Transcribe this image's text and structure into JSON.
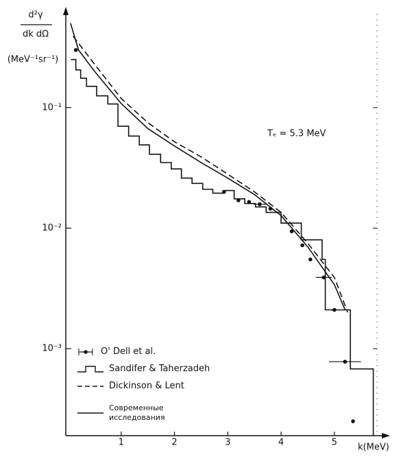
{
  "chart_data": {
    "type": "line",
    "yscale": "log",
    "y_label": {
      "numerator": "d²γ",
      "denominator": "dk dΩ",
      "units": "(MeV⁻¹sr⁻¹)"
    },
    "x_label": "k(MeV)",
    "annotation": "Tₑ = 5.3 MeV",
    "xlim": [
      0,
      5.8
    ],
    "xticks": [
      1,
      2,
      3,
      4,
      5
    ],
    "ylim": [
      0.00019,
      0.6
    ],
    "yticks": [
      {
        "value": 0.1,
        "label": "10⁻¹"
      },
      {
        "value": 0.01,
        "label": "10⁻²"
      },
      {
        "value": 0.001,
        "label": "10⁻³"
      }
    ],
    "legend": "lower left",
    "series": [
      {
        "name": "O' Dell et al.",
        "type": "scatter",
        "color": "#111",
        "x": [
          0.15,
          2.93,
          3.2,
          3.4,
          3.6,
          3.8,
          4.2,
          4.4,
          4.55,
          4.8,
          5.0,
          5.2,
          5.35
        ],
        "values": [
          0.3,
          0.02,
          0.017,
          0.0165,
          0.0158,
          0.0145,
          0.0094,
          0.0072,
          0.0055,
          0.0039,
          0.0021,
          0.00078,
          0.00025
        ],
        "xerr": [
          null,
          null,
          null,
          null,
          0.12,
          null,
          null,
          null,
          null,
          0.15,
          null,
          0.3,
          null
        ]
      },
      {
        "name": "Sandifer & Taherzadeh",
        "type": "step",
        "color": "#111",
        "bins": [
          0.06,
          0.15,
          0.24,
          0.35,
          0.54,
          0.75,
          0.94,
          1.14,
          1.34,
          1.53,
          1.74,
          1.94,
          2.13,
          2.33,
          2.53,
          2.72,
          2.93,
          3.12,
          3.32,
          3.52,
          3.72,
          4.0,
          4.38,
          4.77,
          4.83,
          5.3,
          5.73
        ],
        "values": [
          0.25,
          0.205,
          0.175,
          0.15,
          0.125,
          0.107,
          0.07,
          0.058,
          0.049,
          0.041,
          0.035,
          0.031,
          0.026,
          0.0235,
          0.021,
          0.0195,
          0.0205,
          0.0175,
          0.016,
          0.015,
          0.0135,
          0.011,
          0.008,
          0.0055,
          0.0021,
          0.00068
        ]
      },
      {
        "name": "Dickinson & Lent",
        "type": "line",
        "dash": true,
        "color": "#111",
        "x": [
          0.1,
          0.5,
          1.0,
          1.5,
          2.0,
          2.5,
          3.0,
          3.5,
          4.0,
          4.5,
          5.0,
          5.25
        ],
        "values": [
          0.39,
          0.229,
          0.119,
          0.075,
          0.052,
          0.039,
          0.028,
          0.02,
          0.0135,
          0.0075,
          0.0039,
          0.002
        ]
      },
      {
        "name": "Современные исследования",
        "type": "line",
        "dash": false,
        "color": "#111",
        "x": [
          0.05,
          0.2,
          0.5,
          1.0,
          1.5,
          2.0,
          2.5,
          3.0,
          3.5,
          4.0,
          4.5,
          5.0,
          5.2
        ],
        "values": [
          0.5,
          0.3,
          0.2,
          0.108,
          0.067,
          0.048,
          0.035,
          0.026,
          0.019,
          0.0127,
          0.007,
          0.0034,
          0.0021
        ]
      }
    ]
  }
}
